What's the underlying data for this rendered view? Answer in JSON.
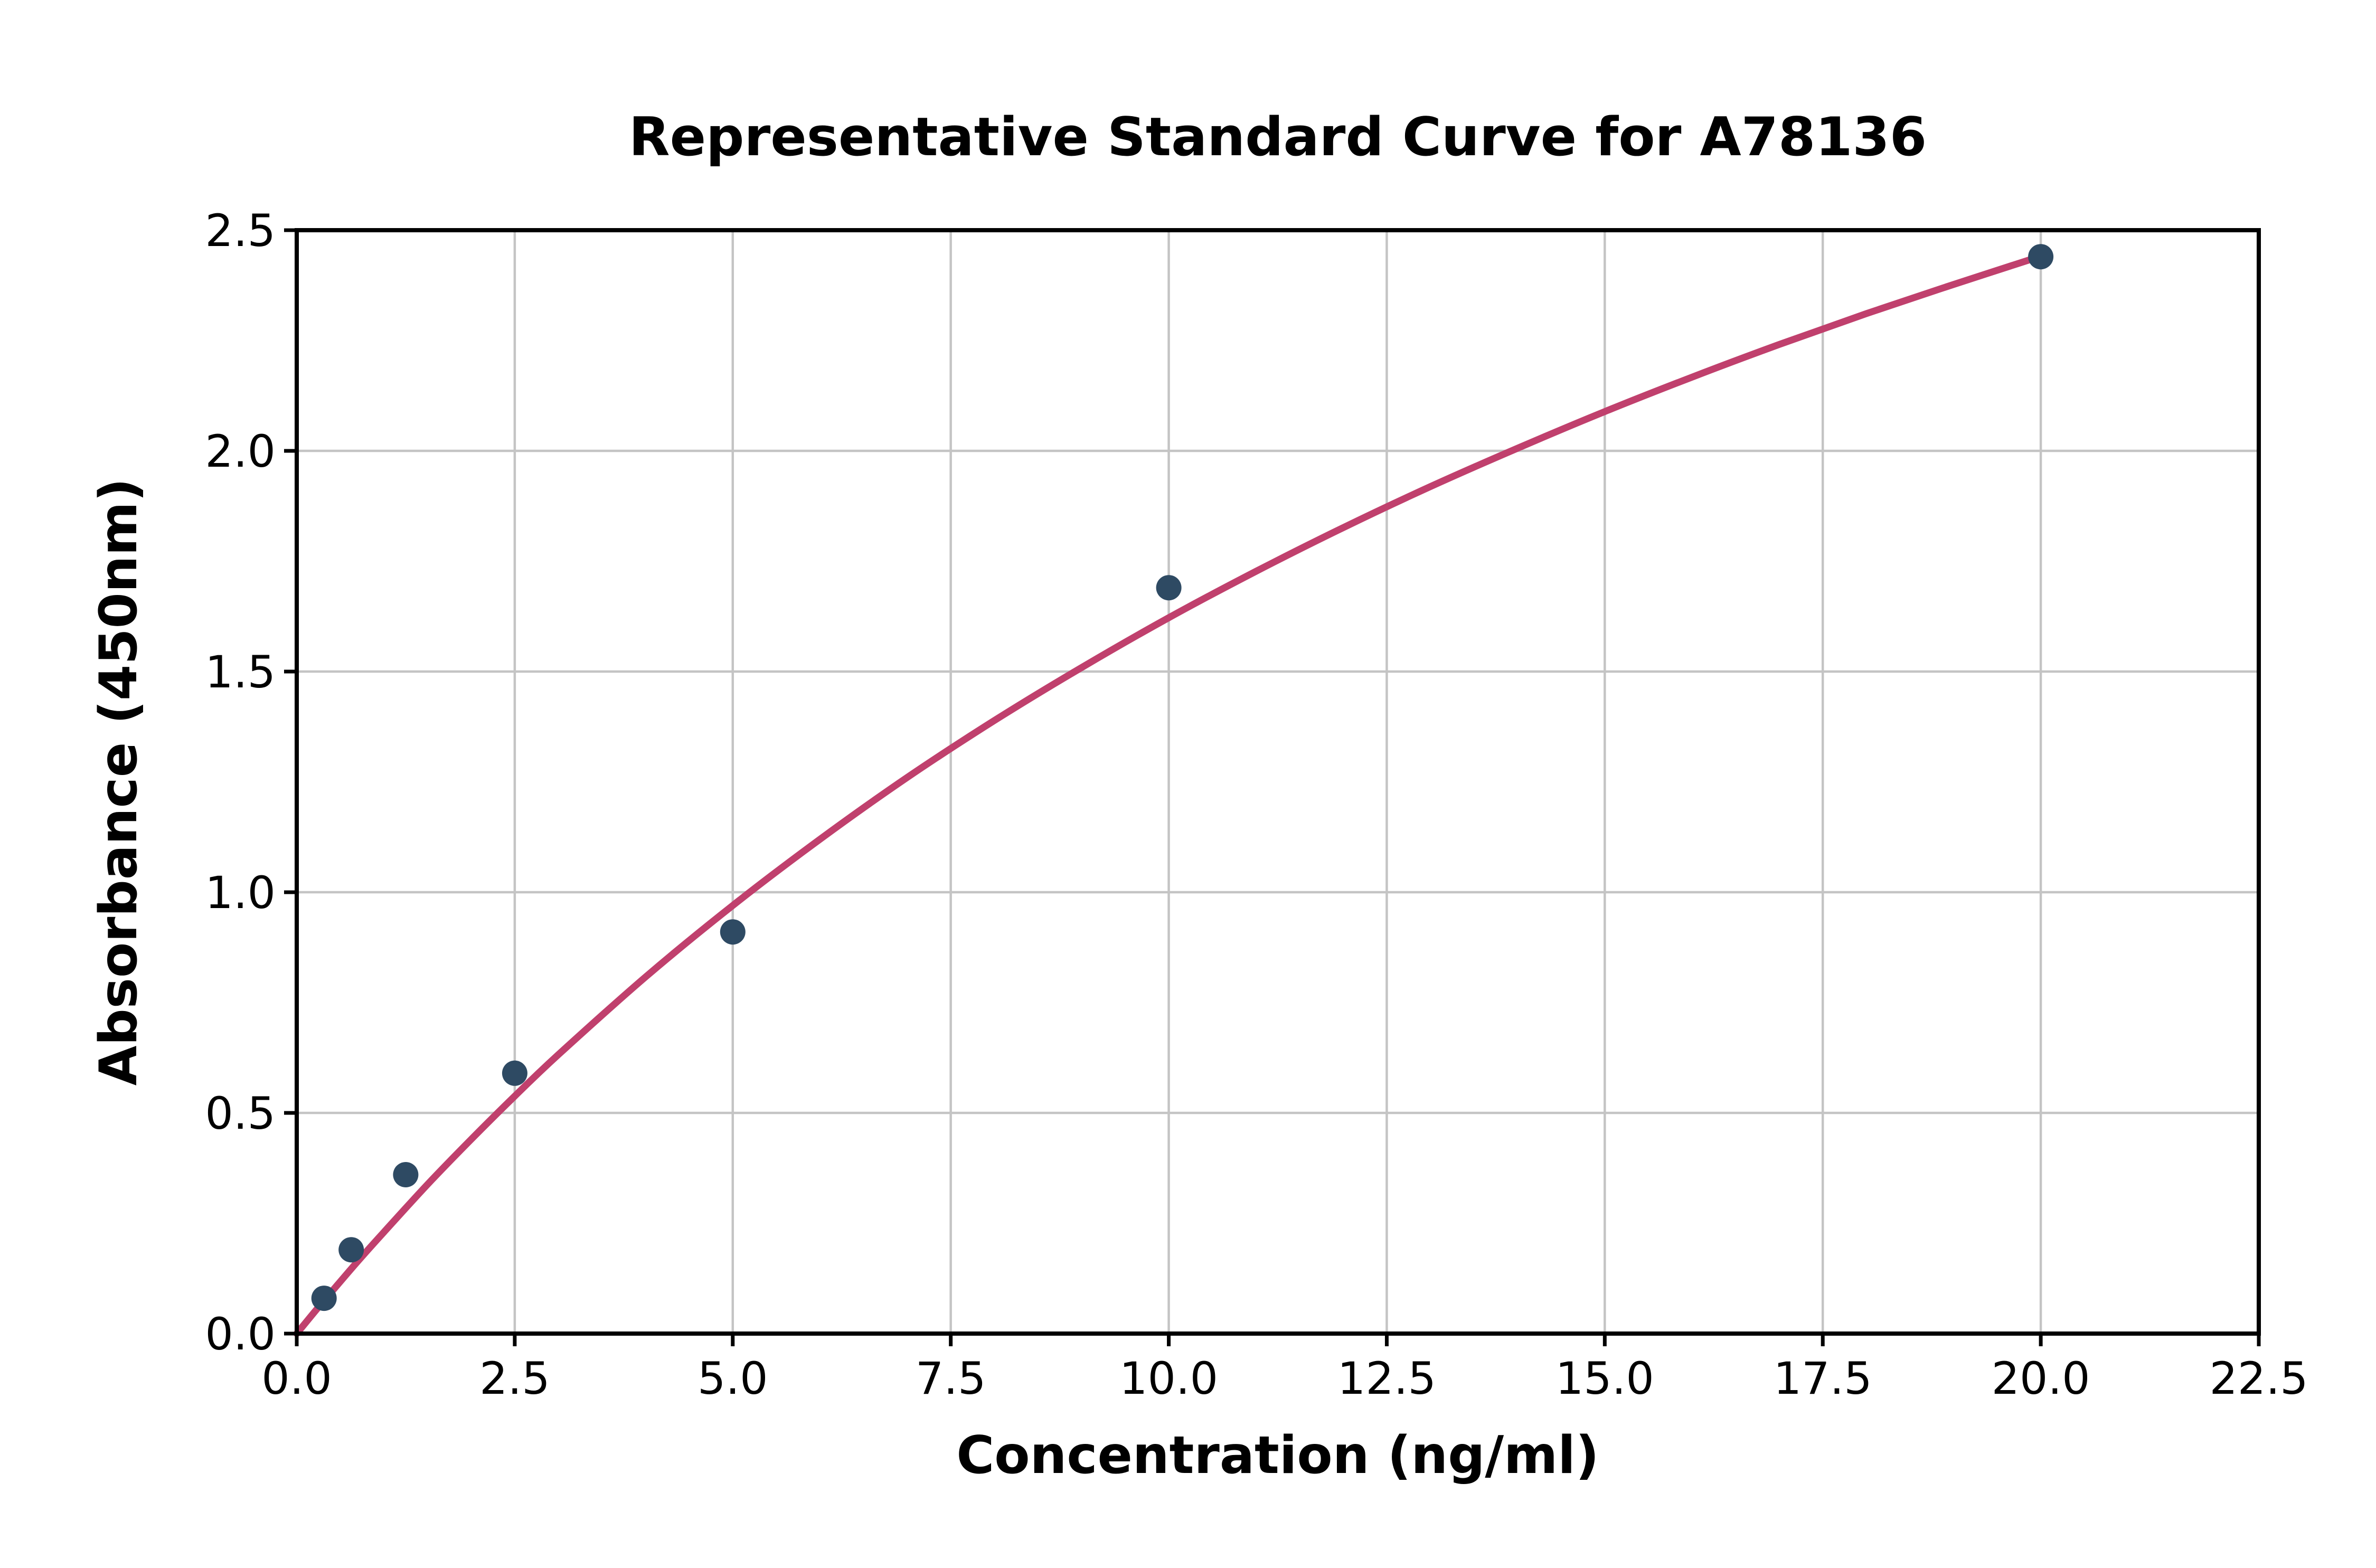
{
  "figure": {
    "background": "#ffffff"
  },
  "chart_data": {
    "type": "scatter",
    "title": "Representative Standard Curve for A78136",
    "xlabel": "Concentration (ng/ml)",
    "ylabel": "Absorbance (450nm)",
    "xlim": [
      0,
      22.5
    ],
    "ylim": [
      0,
      2.5
    ],
    "x_ticks": [
      0,
      2.5,
      5,
      7.5,
      10,
      12.5,
      15,
      17.5,
      20,
      22.5
    ],
    "x_tick_labels": [
      "0.0",
      "2.5",
      "5.0",
      "7.5",
      "10.0",
      "12.5",
      "15.0",
      "17.5",
      "20.0",
      "22.5"
    ],
    "y_ticks": [
      0,
      0.5,
      1,
      1.5,
      2,
      2.5
    ],
    "y_tick_labels": [
      "0.0",
      "0.5",
      "1.0",
      "1.5",
      "2.0",
      "2.5"
    ],
    "grid": true,
    "legend_position": "none",
    "series": [
      {
        "name": "fit-curve",
        "type": "line",
        "color": "#c0406d",
        "stroke_width": 13,
        "x": [
          0,
          0.25,
          0.5,
          0.75,
          1,
          1.5,
          2,
          2.5,
          3,
          4,
          5,
          6,
          7,
          8,
          9,
          10,
          11,
          12,
          13,
          14,
          15,
          16,
          17,
          18,
          19,
          20
        ],
        "y": [
          0,
          0.06,
          0.118,
          0.175,
          0.23,
          0.338,
          0.44,
          0.538,
          0.632,
          0.808,
          0.97,
          1.12,
          1.26,
          1.389,
          1.509,
          1.622,
          1.727,
          1.826,
          1.919,
          2.006,
          2.089,
          2.167,
          2.241,
          2.311,
          2.377,
          2.441
        ]
      },
      {
        "name": "standard-points",
        "type": "scatter",
        "color": "#2e4a63",
        "marker_radius": 24,
        "x": [
          0.313,
          0.625,
          1.25,
          2.5,
          5,
          10,
          20
        ],
        "y": [
          0.08,
          0.19,
          0.36,
          0.59,
          0.91,
          1.69,
          2.44
        ]
      }
    ],
    "colors": {
      "grid": "#c4c4c4",
      "spine": "#000000",
      "tick_label": "#000000",
      "title": "#000000"
    }
  }
}
